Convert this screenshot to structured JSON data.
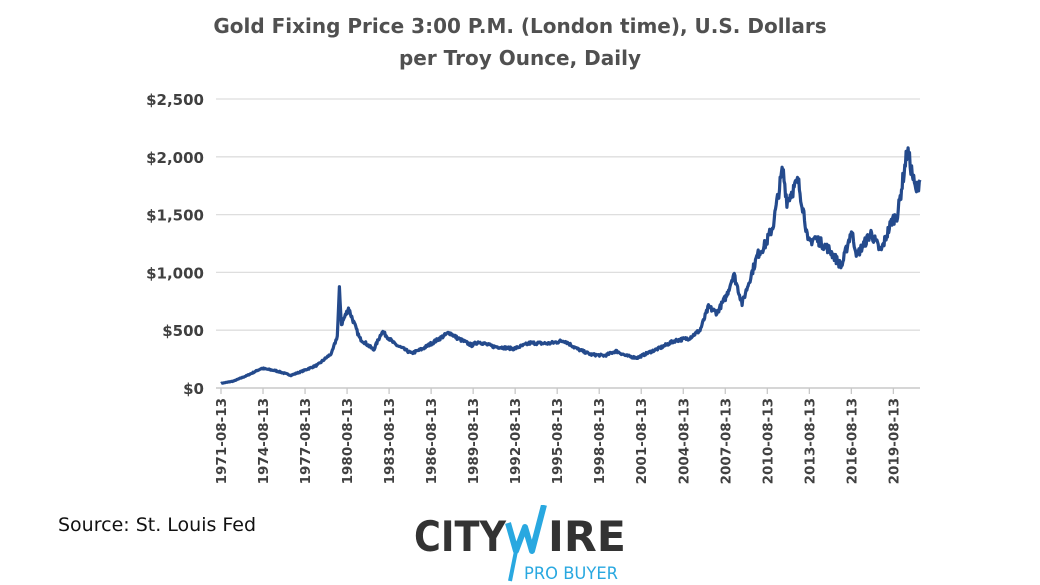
{
  "chart_data": {
    "type": "line",
    "title_line1": "Gold Fixing Price 3:00 P.M. (London time), U.S. Dollars",
    "title_line2": "per Troy Ounce, Daily",
    "xlabel": "",
    "ylabel": "",
    "ylim": [
      0,
      2500
    ],
    "xlim": [
      1971.6,
      2021.5
    ],
    "grid": true,
    "legend": "none",
    "y_ticks": [
      {
        "value": 0,
        "label": "$0"
      },
      {
        "value": 500,
        "label": "$500"
      },
      {
        "value": 1000,
        "label": "$1,000"
      },
      {
        "value": 1500,
        "label": "$1,500"
      },
      {
        "value": 2000,
        "label": "$2,000"
      },
      {
        "value": 2500,
        "label": "$2,500"
      }
    ],
    "x_ticks": [
      {
        "value": 1971.6,
        "label": "1971-08-13"
      },
      {
        "value": 1974.6,
        "label": "1974-08-13"
      },
      {
        "value": 1977.6,
        "label": "1977-08-13"
      },
      {
        "value": 1980.6,
        "label": "1980-08-13"
      },
      {
        "value": 1983.6,
        "label": "1983-08-13"
      },
      {
        "value": 1986.6,
        "label": "1986-08-13"
      },
      {
        "value": 1989.6,
        "label": "1989-08-13"
      },
      {
        "value": 1992.6,
        "label": "1992-08-13"
      },
      {
        "value": 1995.6,
        "label": "1995-08-13"
      },
      {
        "value": 1998.6,
        "label": "1998-08-13"
      },
      {
        "value": 2001.6,
        "label": "2001-08-13"
      },
      {
        "value": 2004.6,
        "label": "2004-08-13"
      },
      {
        "value": 2007.6,
        "label": "2007-08-13"
      },
      {
        "value": 2010.6,
        "label": "2010-08-13"
      },
      {
        "value": 2013.6,
        "label": "2013-08-13"
      },
      {
        "value": 2016.6,
        "label": "2016-08-13"
      },
      {
        "value": 2019.6,
        "label": "2019-08-13"
      }
    ],
    "series": [
      {
        "name": "Gold Fixing Price",
        "color": "#244a8c",
        "x": [
          1971.6,
          1972.5,
          1973.5,
          1974.5,
          1975.5,
          1976.6,
          1977.5,
          1978.5,
          1979.5,
          1979.9,
          1980.05,
          1980.2,
          1980.7,
          1981.5,
          1982.5,
          1983.1,
          1984.0,
          1985.2,
          1986.0,
          1987.9,
          1988.5,
          1989.5,
          1990.0,
          1991.0,
          1992.5,
          1993.7,
          1995.0,
          1996.1,
          1997.0,
          1998.0,
          1999.0,
          1999.8,
          2000.5,
          2001.3,
          2002.0,
          2003.0,
          2004.0,
          2005.0,
          2005.8,
          2006.4,
          2007.0,
          2007.7,
          2008.2,
          2008.8,
          2009.9,
          2010.5,
          2011.0,
          2011.7,
          2012.0,
          2012.8,
          2013.3,
          2013.5,
          2014.0,
          2015.0,
          2015.9,
          2016.6,
          2017.0,
          2018.0,
          2018.7,
          2019.5,
          2019.9,
          2020.6,
          2020.9,
          2021.2,
          2021.5
        ],
        "y": [
          40,
          60,
          110,
          170,
          150,
          110,
          150,
          200,
          300,
          450,
          850,
          550,
          690,
          430,
          330,
          490,
          380,
          300,
          340,
          480,
          430,
          370,
          400,
          360,
          340,
          390,
          385,
          410,
          340,
          290,
          280,
          320,
          280,
          260,
          300,
          350,
          410,
          430,
          500,
          700,
          650,
          800,
          990,
          730,
          1150,
          1250,
          1400,
          1900,
          1620,
          1790,
          1450,
          1250,
          1300,
          1200,
          1050,
          1360,
          1150,
          1340,
          1180,
          1450,
          1500,
          2060,
          1880,
          1700,
          1800
        ]
      }
    ]
  },
  "source": "Source: St. Louis Fed",
  "logo": {
    "name": "CITYWIRE",
    "sub": "PRO BUYER",
    "dark": "#333333",
    "accent": "#29a8e0"
  }
}
